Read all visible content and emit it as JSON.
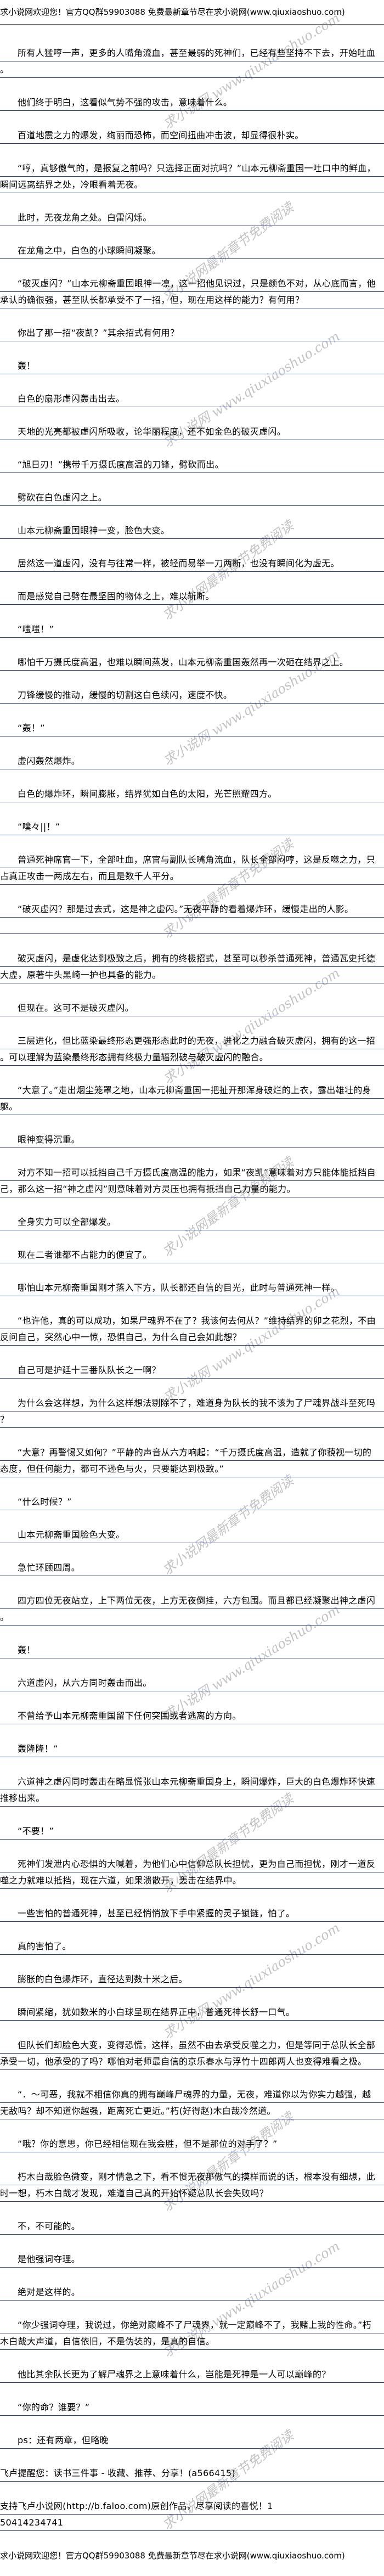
{
  "header_banner": "求小说网欢迎您！官方QQ群59903088 免费最新章节尽在求小说网(www.qiuxiaoshuo.com)",
  "footer_banner": "求小说网欢迎您！官方QQ群59903088 免费最新章节尽在求小说网(www.qiuxiaoshuo.com)",
  "watermarks": [
    "求小说网 www.qiuxiaoshuo.com",
    "求小说网最新章节免费阅读"
  ],
  "paragraphs": [
    {
      "text": "所有人猛哼一声，更多的人嘴角流血，甚至最弱的死神们，已经有些坚持不下去，开始吐血。",
      "indent": true
    },
    {
      "text": "他们终于明白，这看似气势不强的攻击，意味着什么。",
      "indent": true
    },
    {
      "text": "百道地震之力的爆发，绚丽而恐怖，而空间扭曲冲击波，却显得很朴实。",
      "indent": true
    },
    {
      "text": "“哼，真够傲气的，是报复之前吗？只选择正面对抗吗？”山本元柳斋重国一吐口中的鲜血，瞬间远离结界之处，冷眼看着无夜。",
      "indent": true
    },
    {
      "text": "此时，无夜龙角之处。白雷闪烁。",
      "indent": true
    },
    {
      "text": "在龙角之中，白色的小球瞬间凝聚。",
      "indent": true
    },
    {
      "text": "“破灭虚闪？”山本元柳斋重国眼神一凛，这一招他见识过，只是颜色不对，从心底而言，他承认的确很强，甚至队长都承受不了一招，但，现在用这样的能力？有何用？",
      "indent": true
    },
    {
      "text": "你出了那一招“夜凯？”其余招式有何用？",
      "indent": true
    },
    {
      "text": "轰！",
      "indent": true
    },
    {
      "text": "白色的扇形虚闪轰击出去。",
      "indent": true
    },
    {
      "text": "天地的光亮都被虚闪所吸收，论华丽程度，还不如金色的破灭虚闪。",
      "indent": true
    },
    {
      "text": "“旭日刃！”携带千万摄氏度高温的刀锋，劈砍而出。",
      "indent": true
    },
    {
      "text": "劈砍在白色虚闪之上。",
      "indent": true
    },
    {
      "text": "山本元柳斋重国眼神一变，脸色大变。",
      "indent": true
    },
    {
      "text": "居然这一道虚闪，没有与往常一样，被轻而易举一刀两断，也没有瞬间化为虚无。",
      "indent": true
    },
    {
      "text": "而是感觉自己劈在最坚固的物体之上，难以斩断。",
      "indent": true
    },
    {
      "text": "“嗤嗤！”",
      "indent": true
    },
    {
      "text": "哪怕千万摄氏度高温，也难以瞬间蒸发，山本元柳斋重国轰然再一次砸在结界之上。",
      "indent": true
    },
    {
      "text": "刀锋缓慢的推动，缓慢的切割这白色续闪，速度不快。",
      "indent": true
    },
    {
      "text": "“轰！”",
      "indent": true
    },
    {
      "text": "虚闪轰然爆炸。",
      "indent": true
    },
    {
      "text": "白色的爆炸环，瞬间膨胀，结界犹如白色的太阳，光芒照耀四方。",
      "indent": true
    },
    {
      "text": "“噗々||！”",
      "indent": true
    },
    {
      "text": "普通死神席官一下，全部吐血，席官与副队长嘴角流血，队长全部闷哼，这是反噬之力，只占真正攻击一两成左右，而且是数千人平分。",
      "indent": true
    },
    {
      "text": "“破灭虚闪？那是过去式，这是神之虚闪。”无夜平静的看着爆炸环，缓慢走出的人影。",
      "indent": true
    },
    {
      "text": "破灭虚闪，是虚化达到极致之后，拥有的终极招式，甚至可以秒杀普通死神，普通瓦史托德大虚，原著牛头黑崎一护也具备的能力。",
      "indent": true
    },
    {
      "text": "但现在。这可不是破灭虚闪。",
      "indent": true
    },
    {
      "text": "三层进化，但比蓝染最终形态更强形态此时的无夜，进化之力融合破灭虚闪，拥有的这一招。可以理解为蓝染最终形态拥有终极力量辐烈破与破灭虚闪的融合。",
      "indent": true
    },
    {
      "text": "“大意了。”走出烟尘笼罩之地，山本元柳斋重国一把扯开那浑身破烂的上衣，露出雄壮的身躯。",
      "indent": true
    },
    {
      "text": "眼神变得沉重。",
      "indent": true
    },
    {
      "text": "对方不知一招可以抵挡自己千万摄氏度高温的能力，如果“夜凯”意味着对方只能体能抵挡自己，那么这一招“神之虚闪”则意味着对方灵压也拥有抵挡自己力量的能力。",
      "indent": true
    },
    {
      "text": "全身实力可以全部爆发。",
      "indent": true
    },
    {
      "text": "现在二者谁都不占能力的便宜了。",
      "indent": true
    },
    {
      "text": "哪怕山本元柳斋重国刚才落入下方，队长都还自信的目光，此时与普通死神一样。",
      "indent": true
    },
    {
      "text": "“也许他，真的可以成功，如果尸魂界不在了？我该何去何从？”维持结界的卯之花烈，不由反问自己，突然心中一惊，恐惧自己，为什么自己会如此想？",
      "indent": true
    },
    {
      "text": "自己可是护廷十三番队队长之一啊？",
      "indent": true
    },
    {
      "text": "为什么会这样想，为什么这样想法剔除不了，难道身为队长的我不该为了尸魂界战斗至死吗？",
      "indent": true
    },
    {
      "text": "“大意？再警惕又如何？”平静的声音从六方响起：“千万摄氏度高温，造就了你藐视一切的态度，但任何能力，都可不逊色与火，只要能达到极致。”",
      "indent": true
    },
    {
      "text": "“什么时候？”",
      "indent": true
    },
    {
      "text": "山本元柳斋重国脸色大变。",
      "indent": true
    },
    {
      "text": "急忙环顾四周。",
      "indent": true
    },
    {
      "text": "四方四位无夜站立，上下两位无夜，上方无夜倒挂，六方包围。而且都已经凝聚出神之虚闪。",
      "indent": true
    },
    {
      "text": "轰！",
      "indent": true
    },
    {
      "text": "六道虚闪，从六方同时轰击而出。",
      "indent": true
    },
    {
      "text": "不曾给予山本元柳斋重国留下任何突围或者逃离的方向。",
      "indent": true
    },
    {
      "text": "轰隆隆！”",
      "indent": true
    },
    {
      "text": "六道神之虚闪同时轰击在略显慌张山本元柳斋重国身上，瞬间爆炸，巨大的白色爆炸环快速推移出来。",
      "indent": true
    },
    {
      "text": "“不要！”",
      "indent": true
    },
    {
      "text": "死神们发泄内心恐惧的大喊着，为他们心中信仰总队长担忧，更为自己而担忧，刚才一道反噬之力就难以抵挡，现在六道，如果溃散开，轰击在结界中。",
      "indent": true
    },
    {
      "text": "一些害怕的普通死神，甚至已经悄悄放下手中紧握的灵子锁链，怕了。",
      "indent": true
    },
    {
      "text": "真的害怕了。",
      "indent": true
    },
    {
      "text": "膨胀的白色爆炸环，直径达到数十米之后。",
      "indent": true
    },
    {
      "text": "瞬间紧缩，犹如数米的小白球呈现在结界正中，普通死神长舒一口气。",
      "indent": true
    },
    {
      "text": "但队长们却脸色大变，变得恐慌，这样，虽然不由去承受反噬之力，但是等同于总队长全部承受一切，他承受的了吗？哪怕对老师最自信的京乐春水与浮竹十四郎两人也变得难看之极。",
      "indent": true
    },
    {
      "text": "“．～可恶，我就不相信你真的拥有巅峰尸魂界的力量，无夜，难道你以为你实力越强，越无敌吗？却不知道你越强，距离死亡更近。”朽(好得赵)木白哉冷然道。",
      "indent": true
    },
    {
      "text": "“哦？你的意思，你已经相信现在我会胜，但不是那位的对手了？”",
      "indent": true
    },
    {
      "text": "朽木白哉脸色微变，刚才情急之下，看不惯无夜那傲气的摸样而说的话，根本没有细想，此时一想，朽木白哉才发现，难道自己真的开始怀疑总队长会失败吗？",
      "indent": true
    },
    {
      "text": "不，不可能的。",
      "indent": true
    },
    {
      "text": "是他强词夺理。",
      "indent": true
    },
    {
      "text": "绝对是这样的。",
      "indent": true
    },
    {
      "text": "“你少强词夺理，我说过，你绝对巅峰不了尸魂界，就一定巅峰不了，我赌上我的性命。”朽木白哉大声道，自信依旧，不是伪装的，是真的自信。",
      "indent": true
    },
    {
      "text": "他比其余队长更为了解尸魂界之上意味着什么，岂能是死神是一人可以巅峰的？",
      "indent": true
    },
    {
      "text": "“你的命？谁要？”",
      "indent": true
    },
    {
      "text": "ps：还有两章，但略晚",
      "indent": true
    },
    {
      "text": "飞卢提醒您：读书三件事 - 收藏、推荐、分享！(a566415)",
      "indent": false
    },
    {
      "text": "支持飞卢小说网(http://b.faloo.com)原创作品，尽享阅读的喜悦！1",
      "indent": false
    },
    {
      "text": "50414234741",
      "indent": false
    }
  ]
}
